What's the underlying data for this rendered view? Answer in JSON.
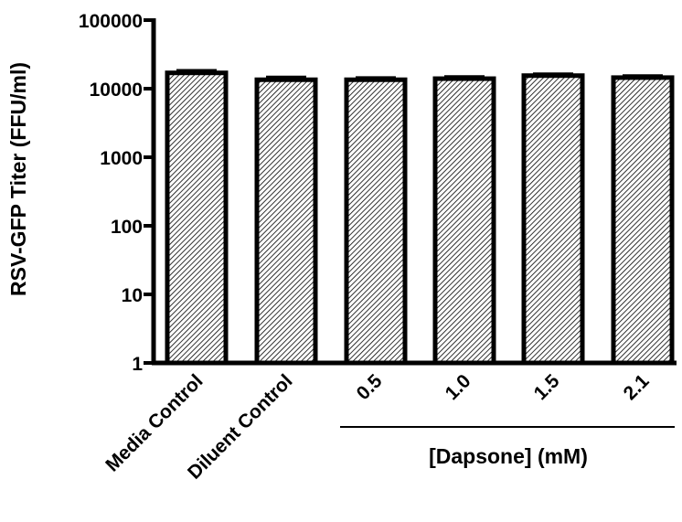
{
  "chart_data": {
    "type": "bar",
    "title": "",
    "ylabel": "RSV-GFP Titer (FFU/ml)",
    "xlabel": "",
    "yscale": "log",
    "ylim": [
      1,
      100000
    ],
    "yticks": [
      1,
      10,
      100,
      1000,
      10000,
      100000
    ],
    "ytick_labels": [
      "1",
      "10",
      "100",
      "1000",
      "10000",
      "100000"
    ],
    "categories": [
      "Media Control",
      "Diluent Control",
      "0.5",
      "1.0",
      "1.5",
      "2.1"
    ],
    "values": [
      17000,
      13500,
      13500,
      14000,
      15500,
      14500
    ],
    "error_upper": [
      18500,
      14800,
      14500,
      15000,
      16500,
      15500
    ],
    "group_label": "[Dapsone] (mM)",
    "group_categories": [
      "0.5",
      "1.0",
      "1.5",
      "2.1"
    ],
    "bar_fill": "hatched",
    "grid": false,
    "legend": "none"
  }
}
